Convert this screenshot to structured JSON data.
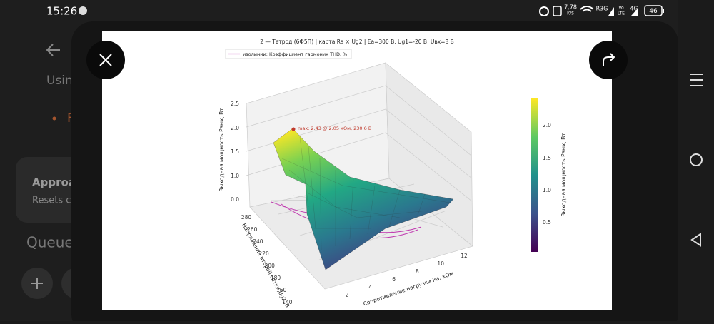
{
  "status_bar": {
    "time": "15:26",
    "speed": "7,78",
    "speed_unit": "K/S",
    "network": "R3G",
    "volte_top": "Vo",
    "volte_bottom": "LTE",
    "generation": "4G",
    "battery": "46"
  },
  "background_app": {
    "line1": "Usin",
    "bullet": "F",
    "card_title": "Approa",
    "card_text": "Resets c",
    "section": "Queue"
  },
  "plot": {
    "title": "2 — Тетрод (6Ф5П) | карта Ra × Ug2 | Ea=300 В, Ug1=-20 В, Uвх=8 В",
    "legend": "изолинии: Коэффициент гармоник THD, %",
    "annotation": "max: 2.43 @ 2.05 кОм, 230.6 В",
    "z_label": "Выходная мощность Pвых, Вт",
    "y_label": "Напряжение второй сетки Ug2, В",
    "x_label": "Сопротивление нагрузки Ra, кОм",
    "z_ticks": [
      "2.5",
      "2.0",
      "1.5",
      "1.0",
      "0.0"
    ],
    "y_ticks": [
      "280",
      "260",
      "240",
      "220",
      "200",
      "180",
      "160",
      "140"
    ],
    "x_ticks": [
      "2",
      "4",
      "6",
      "8",
      "10",
      "12"
    ],
    "colorbar_label": "Выходная мощность Pвых, Вт",
    "colorbar_ticks": [
      "2.0",
      "1.5",
      "1.0",
      "0.5"
    ]
  }
}
